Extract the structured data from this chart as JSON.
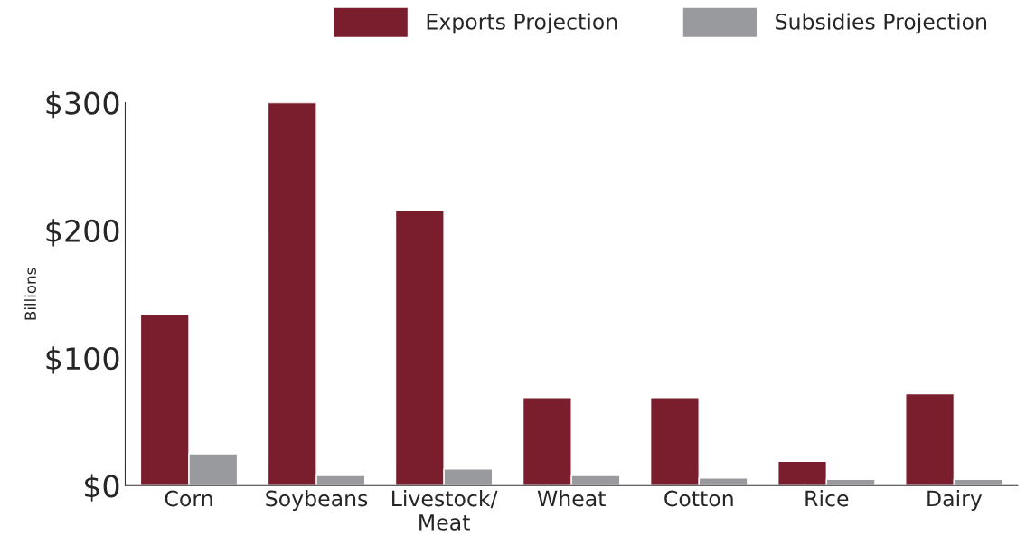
{
  "chart_data": {
    "type": "bar",
    "ylabel": "Billions",
    "categories": [
      "Corn",
      "Soybeans",
      "Livestock/\nMeat",
      "Wheat",
      "Cotton",
      "Rice",
      "Dairy"
    ],
    "series": [
      {
        "name": "Exports Projection",
        "color": "#7a1e2e",
        "values": [
          134,
          300,
          216,
          69,
          69,
          19,
          72
        ]
      },
      {
        "name": "Subsidies Projection",
        "color": "#999a9e",
        "values": [
          25,
          8,
          13,
          8,
          6,
          5,
          5
        ]
      }
    ],
    "ylim": [
      0,
      300
    ],
    "yticks": [
      {
        "value": 0,
        "label": "$0"
      },
      {
        "value": 100,
        "label": "$100"
      },
      {
        "value": 200,
        "label": "$200"
      },
      {
        "value": 300,
        "label": "$300"
      }
    ],
    "grid": false,
    "legend": "top"
  }
}
